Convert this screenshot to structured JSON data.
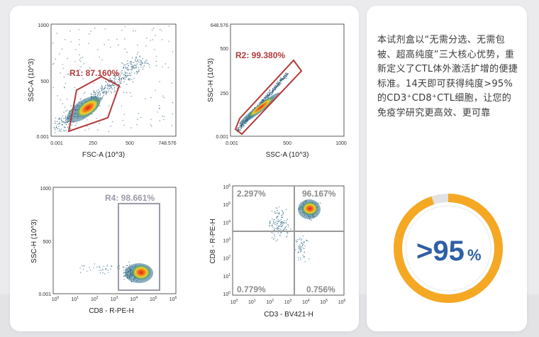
{
  "colors": {
    "accent_orange": "#f5a823",
    "gauge_gray": "#e2e2e2",
    "gate_red": "#b23a3a",
    "gate_gray": "#9a9aaa",
    "stat_blue": "#2f5fa6"
  },
  "plots": {
    "r1": {
      "x_label": "FSC-A (10^3)",
      "y_label": "SSC-A (10^3)",
      "x_ticks": [
        "0.001",
        "250",
        "500",
        "748.576"
      ],
      "y_ticks": [
        "1000",
        "500",
        "0.001"
      ],
      "gate_label": "R1: 87.160%"
    },
    "r2": {
      "x_label": "SSC-A (10^3)",
      "y_label": "SSC-H (10^3)",
      "x_ticks": [
        "0.001",
        "500",
        "1000"
      ],
      "y_ticks": [
        "648.576",
        "500",
        "250",
        "0.001"
      ],
      "gate_label": "R2: 99.380%"
    },
    "r4": {
      "x_label": "CD8 - R-PE-H",
      "y_label": "SSC-H (10^3)",
      "x_tick_exponents": [
        "0",
        "1",
        "2",
        "3",
        "4",
        "5",
        "6"
      ],
      "y_ticks": [
        "1000",
        "500",
        "0.001"
      ],
      "gate_label": "R4: 98.661%"
    },
    "quad": {
      "x_label": "CD3 - BV421-H",
      "y_label": "CD8 - R-PE-H",
      "x_tick_exponents": [
        "0",
        "1",
        "2",
        "3",
        "4",
        "5",
        "6"
      ],
      "y_tick_exponents": [
        "6",
        "5",
        "4",
        "3",
        "2",
        "1",
        "0"
      ],
      "q_ul": "2.297%",
      "q_ur": "96.167%",
      "q_ll": "0.779%",
      "q_lr": "0.756%"
    }
  },
  "side": {
    "description": "本试剂盒以“无需分选、无需包被、超高纯度”三大核心优势，重新定义了CTL体外激活扩增的便捷标准。14天即可获得纯度>95%的CD3⁺CD8⁺CTL细胞，让您的免疫学研究更高效、更可靠"
  },
  "purity": {
    "value_text": ">95",
    "unit": "%",
    "fraction": 0.95
  }
}
